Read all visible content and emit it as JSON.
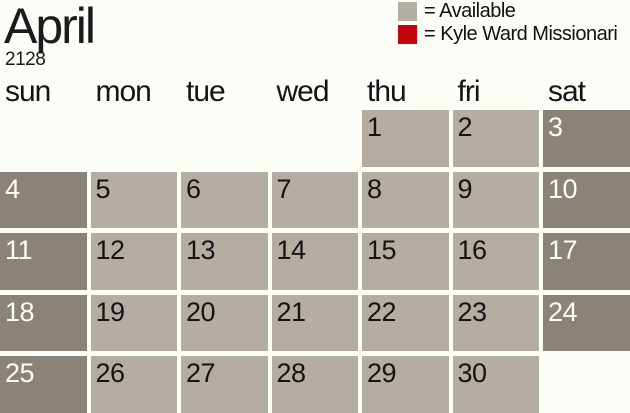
{
  "title": {
    "month": "April",
    "year": "2128"
  },
  "legend": {
    "available": {
      "label": "= Available",
      "color": "#b4ada4"
    },
    "booked": {
      "label": "= Kyle Ward Missionari",
      "color": "#c40409"
    }
  },
  "weekdays": [
    "sun",
    "mon",
    "tue",
    "wed",
    "thu",
    "fri",
    "sat"
  ],
  "calendar": {
    "month_number": 4,
    "first_day_column": "thu",
    "weeks": [
      [
        null,
        null,
        null,
        null,
        "1",
        "2",
        "3"
      ],
      [
        "4",
        "5",
        "6",
        "7",
        "8",
        "9",
        "10"
      ],
      [
        "11",
        "12",
        "13",
        "14",
        "15",
        "16",
        "17"
      ],
      [
        "18",
        "19",
        "20",
        "21",
        "22",
        "23",
        "24"
      ],
      [
        "25",
        "26",
        "27",
        "28",
        "29",
        "30",
        null
      ]
    ],
    "all_visible_days_status": "Available"
  },
  "colors": {
    "background": "#fcfdf6",
    "weekday_cell": "#b4ada4",
    "weekend_cell": "#8a8378",
    "weekday_text": "#141414",
    "weekend_text": "#fdfdf8",
    "legend_gray": "#b4ada4",
    "legend_red": "#c40409"
  }
}
